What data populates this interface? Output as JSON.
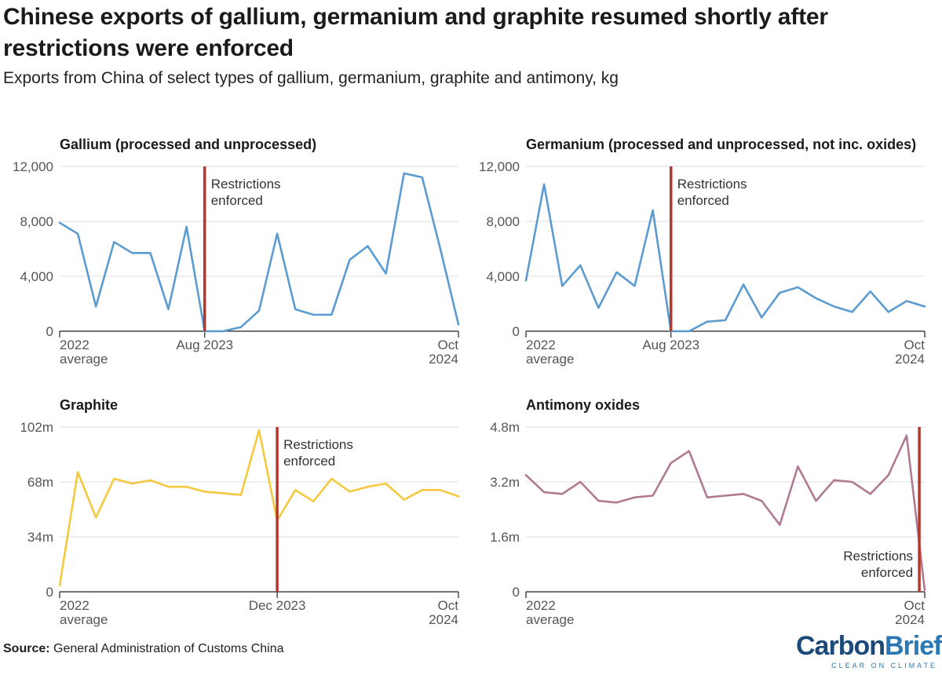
{
  "title": "Chinese exports of gallium, germanium and graphite resumed shortly after restrictions were enforced",
  "subtitle": "Exports from China of select types of gallium, germanium, graphite and antimony, kg",
  "source_label": "Source:",
  "source_text": "General Administration of Customs China",
  "logo": {
    "carbon": "Carbon",
    "brief": "Brief",
    "tagline": "CLEAR ON CLIMATE"
  },
  "colors": {
    "gallium": "#5b9bd0",
    "germanium": "#5b9bd0",
    "graphite": "#f4c93f",
    "antimony": "#b07a93",
    "restriction": "#b5382c"
  },
  "chart_data": [
    {
      "type": "line",
      "title": "Gallium (processed and unprocessed)",
      "color": "#5b9bd0",
      "ylim": [
        0,
        12000
      ],
      "yticks": [
        0,
        4000,
        8000,
        12000
      ],
      "ytick_labels": [
        "0",
        "4,000",
        "8,000",
        "12,000"
      ],
      "x_labels": [
        {
          "index": 0,
          "lines": [
            "2022",
            "average"
          ],
          "align": "start"
        },
        {
          "index": 8,
          "lines": [
            "Aug 2023"
          ],
          "align": "middle"
        },
        {
          "index": 22,
          "lines": [
            "Oct",
            "2024"
          ],
          "align": "end"
        }
      ],
      "restriction_index": 8,
      "restriction_label": [
        "Restrictions",
        "enforced"
      ],
      "restriction_label_side": "right",
      "x": [
        "2022 average",
        "Jan 2023",
        "Feb 2023",
        "Mar 2023",
        "Apr 2023",
        "May 2023",
        "Jun 2023",
        "Jul 2023",
        "Aug 2023",
        "Sep 2023",
        "Oct 2023",
        "Nov 2023",
        "Dec 2023",
        "Jan 2024",
        "Feb 2024",
        "Mar 2024",
        "Apr 2024",
        "May 2024",
        "Jun 2024",
        "Jul 2024",
        "Aug 2024",
        "Sep 2024",
        "Oct 2024"
      ],
      "values": [
        7900,
        7100,
        1800,
        6500,
        5700,
        5700,
        1600,
        7600,
        0,
        0,
        300,
        1500,
        7100,
        1600,
        1200,
        1200,
        5200,
        6200,
        4200,
        11500,
        11200,
        6000,
        500
      ]
    },
    {
      "type": "line",
      "title": "Germanium (processed and unprocessed, not inc. oxides)",
      "color": "#5b9bd0",
      "ylim": [
        0,
        12000
      ],
      "yticks": [
        0,
        4000,
        8000,
        12000
      ],
      "ytick_labels": [
        "0",
        "4,000",
        "8,000",
        "12,000"
      ],
      "x_labels": [
        {
          "index": 0,
          "lines": [
            "2022",
            "average"
          ],
          "align": "start"
        },
        {
          "index": 8,
          "lines": [
            "Aug 2023"
          ],
          "align": "middle"
        },
        {
          "index": 22,
          "lines": [
            "Oct",
            "2024"
          ],
          "align": "end"
        }
      ],
      "restriction_index": 8,
      "restriction_label": [
        "Restrictions",
        "enforced"
      ],
      "restriction_label_side": "right",
      "x": [
        "2022 average",
        "Jan 2023",
        "Feb 2023",
        "Mar 2023",
        "Apr 2023",
        "May 2023",
        "Jun 2023",
        "Jul 2023",
        "Aug 2023",
        "Sep 2023",
        "Oct 2023",
        "Nov 2023",
        "Dec 2023",
        "Jan 2024",
        "Feb 2024",
        "Mar 2024",
        "Apr 2024",
        "May 2024",
        "Jun 2024",
        "Jul 2024",
        "Aug 2024",
        "Sep 2024",
        "Oct 2024"
      ],
      "values": [
        3700,
        10700,
        3300,
        4800,
        1700,
        4300,
        3300,
        8800,
        0,
        0,
        700,
        800,
        3400,
        1000,
        2800,
        3200,
        2400,
        1800,
        1400,
        2900,
        1400,
        2200,
        1800
      ]
    },
    {
      "type": "line",
      "title": "Graphite",
      "color": "#f4c93f",
      "ylim": [
        0,
        102000000
      ],
      "yticks": [
        0,
        34000000,
        68000000,
        102000000
      ],
      "ytick_labels": [
        "0",
        "34m",
        "68m",
        "102m"
      ],
      "x_labels": [
        {
          "index": 0,
          "lines": [
            "2022",
            "average"
          ],
          "align": "start"
        },
        {
          "index": 12,
          "lines": [
            "Dec 2023"
          ],
          "align": "middle"
        },
        {
          "index": 22,
          "lines": [
            "Oct",
            "2024"
          ],
          "align": "end"
        }
      ],
      "restriction_index": 12,
      "restriction_label": [
        "Restrictions",
        "enforced"
      ],
      "restriction_label_side": "right",
      "x": [
        "2022 average",
        "Jan 2023",
        "Feb 2023",
        "Mar 2023",
        "Apr 2023",
        "May 2023",
        "Jun 2023",
        "Jul 2023",
        "Aug 2023",
        "Sep 2023",
        "Oct 2023",
        "Nov 2023",
        "Dec 2023",
        "Jan 2024",
        "Feb 2024",
        "Mar 2024",
        "Apr 2024",
        "May 2024",
        "Jun 2024",
        "Jul 2024",
        "Aug 2024",
        "Sep 2024",
        "Oct 2024"
      ],
      "values": [
        4000000,
        74000000,
        46000000,
        70000000,
        67000000,
        69000000,
        65000000,
        65000000,
        62000000,
        61000000,
        60000000,
        100000000,
        44000000,
        63000000,
        56000000,
        70000000,
        62000000,
        65000000,
        67000000,
        57000000,
        63000000,
        63000000,
        59000000
      ]
    },
    {
      "type": "line",
      "title": "Antimony oxides",
      "color": "#b07a93",
      "ylim": [
        0,
        4800000
      ],
      "yticks": [
        0,
        1600000,
        3200000,
        4800000
      ],
      "ytick_labels": [
        "0",
        "1.6m",
        "3.2m",
        "4.8m"
      ],
      "x_labels": [
        {
          "index": 0,
          "lines": [
            "2022",
            "average"
          ],
          "align": "start"
        },
        {
          "index": 22,
          "lines": [
            "Oct",
            "2024"
          ],
          "align": "end"
        }
      ],
      "restriction_index": 21.7,
      "restriction_label": [
        "Restrictions",
        "enforced"
      ],
      "restriction_label_side": "left",
      "x": [
        "2022 average",
        "Jan 2023",
        "Feb 2023",
        "Mar 2023",
        "Apr 2023",
        "May 2023",
        "Jun 2023",
        "Jul 2023",
        "Aug 2023",
        "Sep 2023",
        "Oct 2023",
        "Nov 2023",
        "Dec 2023",
        "Jan 2024",
        "Feb 2024",
        "Mar 2024",
        "Apr 2024",
        "May 2024",
        "Jun 2024",
        "Jul 2024",
        "Aug 2024",
        "Sep 2024",
        "Oct 2024"
      ],
      "values": [
        3400000,
        2900000,
        2850000,
        3200000,
        2650000,
        2600000,
        2750000,
        2800000,
        3750000,
        4100000,
        2750000,
        2800000,
        2850000,
        2650000,
        1950000,
        3650000,
        2650000,
        3250000,
        3200000,
        2850000,
        3400000,
        4550000,
        50000
      ]
    }
  ]
}
